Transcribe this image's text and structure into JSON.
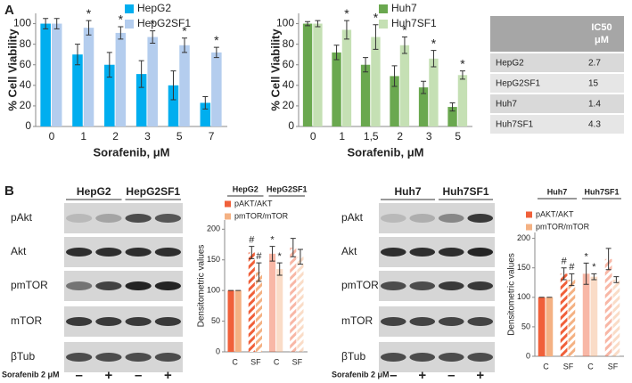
{
  "panel_labels": [
    "A",
    "B"
  ],
  "chart_data": [
    {
      "type": "bar",
      "xlabel": "Sorafenib, μM",
      "ylabel": "% Cell Viability",
      "categories": [
        "0",
        "1",
        "2",
        "3",
        "5",
        "7"
      ],
      "series": [
        {
          "name": "HepG2",
          "color": "#00aeef",
          "values": [
            100,
            70,
            60,
            51,
            40,
            23
          ],
          "errors": [
            5,
            10,
            12,
            13,
            14,
            6
          ],
          "significance": [
            null,
            null,
            null,
            null,
            null,
            null
          ]
        },
        {
          "name": "HepG2SF1",
          "color": "#b4cdee",
          "values": [
            100,
            96,
            91,
            87,
            79,
            72
          ],
          "errors": [
            5,
            7,
            6,
            6,
            7,
            5
          ],
          "significance": [
            null,
            "*",
            "*",
            "*",
            "*",
            "*"
          ]
        }
      ],
      "ylim": [
        0,
        110
      ],
      "yticks": [
        0,
        20,
        40,
        60,
        80,
        100
      ],
      "legend": "upper right"
    },
    {
      "type": "bar",
      "xlabel": "Sorafenib, μM",
      "ylabel": "% Cell Viability",
      "categories": [
        "0",
        "1",
        "1,5",
        "2",
        "3",
        "5"
      ],
      "series": [
        {
          "name": "Huh7",
          "color": "#6aa84f",
          "values": [
            100,
            72,
            60,
            49,
            38,
            19
          ],
          "errors": [
            2,
            7,
            7,
            10,
            6,
            4
          ],
          "significance": [
            null,
            null,
            null,
            null,
            null,
            null
          ]
        },
        {
          "name": "Huh7SF1",
          "color": "#c5e0b4",
          "values": [
            100,
            94,
            87,
            79,
            66,
            50
          ],
          "errors": [
            3,
            9,
            12,
            8,
            8,
            4
          ],
          "significance": [
            null,
            "*",
            "*",
            "*",
            "*",
            "*"
          ]
        }
      ],
      "ylim": [
        0,
        110
      ],
      "yticks": [
        0,
        20,
        40,
        60,
        80,
        100
      ],
      "legend": "upper right"
    },
    {
      "type": "bar",
      "ylabel": "Densitometric values",
      "group_labels": [
        "HepG2",
        "HepG2SF1"
      ],
      "categories": [
        "C",
        "SF",
        "C",
        "SF"
      ],
      "hatched": [
        false,
        true,
        false,
        true
      ],
      "faded": [
        false,
        false,
        true,
        true
      ],
      "series": [
        {
          "name": "pAKT/AKT",
          "color": "#f0603a",
          "values": [
            100,
            162,
            160,
            170
          ],
          "errors": [
            0,
            10,
            12,
            15
          ],
          "significance": [
            null,
            "#",
            "*",
            null
          ]
        },
        {
          "name": "pmTOR/mTOR",
          "color": "#f4b183",
          "values": [
            100,
            130,
            135,
            155
          ],
          "errors": [
            0,
            15,
            10,
            12
          ],
          "significance": [
            null,
            "#",
            "*",
            null
          ]
        }
      ],
      "ylim": [
        0,
        215
      ],
      "yticks": [
        0,
        50,
        100,
        150,
        200
      ],
      "legend": "upper left"
    },
    {
      "type": "bar",
      "ylabel": "Densitometric values",
      "group_labels": [
        "Huh7",
        "Huh7SF1"
      ],
      "categories": [
        "C",
        "SF",
        "C",
        "SF"
      ],
      "hatched": [
        false,
        true,
        false,
        true
      ],
      "faded": [
        false,
        false,
        true,
        true
      ],
      "series": [
        {
          "name": "pAKT/AKT",
          "color": "#f0603a",
          "values": [
            100,
            140,
            140,
            165
          ],
          "errors": [
            0,
            10,
            18,
            18
          ],
          "significance": [
            null,
            "#",
            "*",
            null
          ]
        },
        {
          "name": "pmTOR/mTOR",
          "color": "#f4b183",
          "values": [
            100,
            130,
            135,
            130
          ],
          "errors": [
            0,
            10,
            5,
            5
          ],
          "significance": [
            null,
            "#",
            "*",
            null
          ]
        }
      ],
      "ylim": [
        0,
        210
      ],
      "yticks": [
        0,
        50,
        100,
        150,
        200
      ],
      "legend": "upper left"
    }
  ],
  "table": {
    "header_lines": [
      "IC50",
      "μM"
    ],
    "rows": [
      [
        "HepG2",
        2.7
      ],
      [
        "HepG2SF1",
        15
      ],
      [
        "Huh7",
        1.4
      ],
      [
        "Huh7SF1",
        4.3
      ]
    ]
  },
  "blots": [
    {
      "group_labels": [
        "HepG2",
        "HepG2SF1"
      ],
      "rows": [
        "pAkt",
        "Akt",
        "pmTOR",
        "mTOR",
        "βTub"
      ],
      "treatment": "Sorafenib 2 μM",
      "signs": [
        "–",
        "+",
        "–",
        "+"
      ]
    },
    {
      "group_labels": [
        "Huh7",
        "Huh7SF1"
      ],
      "rows": [
        "pAkt",
        "Akt",
        "pmTOR",
        "mTOR",
        "βTub"
      ],
      "treatment": "Sorafenib 2 μM",
      "signs": [
        "–",
        "+",
        "–",
        "+"
      ]
    }
  ]
}
